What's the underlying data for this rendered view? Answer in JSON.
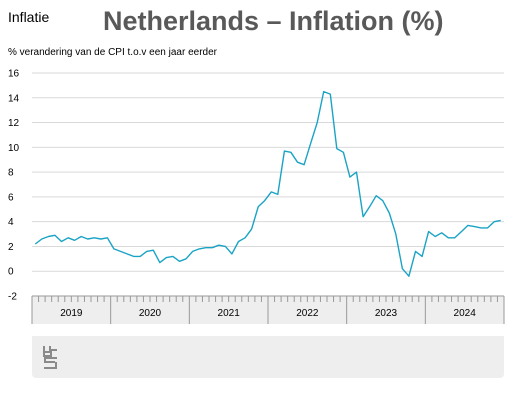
{
  "header": {
    "label": "Inflatie",
    "title": "Netherlands – Inflation (%)",
    "subtitle": "% verandering van de CPI t.o.v een jaar eerder"
  },
  "colors": {
    "line": "#1aa3c5",
    "grid": "#d9d9d9",
    "axis_band": "#eeeeee"
  },
  "logo_icon": "cbs-logo-icon",
  "chart_data": {
    "type": "line",
    "title": "Netherlands – Inflation (%)",
    "ylabel": "% verandering van de CPI t.o.v een jaar eerder",
    "ylim": [
      -2,
      16
    ],
    "yticks": [
      16,
      14,
      12,
      10,
      8,
      6,
      4,
      2,
      0,
      -2
    ],
    "years": [
      "2019",
      "2020",
      "2021",
      "2022",
      "2023",
      "2024"
    ],
    "x_start": "2019-01",
    "x_end": "2024-12",
    "grid": true,
    "series": [
      {
        "values": [
          2.2,
          2.6,
          2.8,
          2.9,
          2.4,
          2.7,
          2.5,
          2.8,
          2.6,
          2.7,
          2.6,
          2.7,
          1.8,
          1.6,
          1.4,
          1.2,
          1.2,
          1.6,
          1.7,
          0.7,
          1.1,
          1.2,
          0.8,
          1.0,
          1.6,
          1.8,
          1.9,
          1.9,
          2.1,
          2.0,
          1.4,
          2.4,
          2.7,
          3.4,
          5.2,
          5.7,
          6.4,
          6.2,
          9.7,
          9.6,
          8.8,
          8.6,
          10.3,
          12.0,
          14.5,
          14.3,
          9.9,
          9.6,
          7.6,
          8.0,
          4.4,
          5.2,
          6.1,
          5.7,
          4.7,
          3.0,
          0.2,
          -0.4,
          1.6,
          1.2,
          3.2,
          2.8,
          3.1,
          2.7,
          2.7,
          3.2,
          3.7,
          3.6,
          3.5,
          3.5,
          4.0,
          4.1
        ]
      }
    ]
  }
}
